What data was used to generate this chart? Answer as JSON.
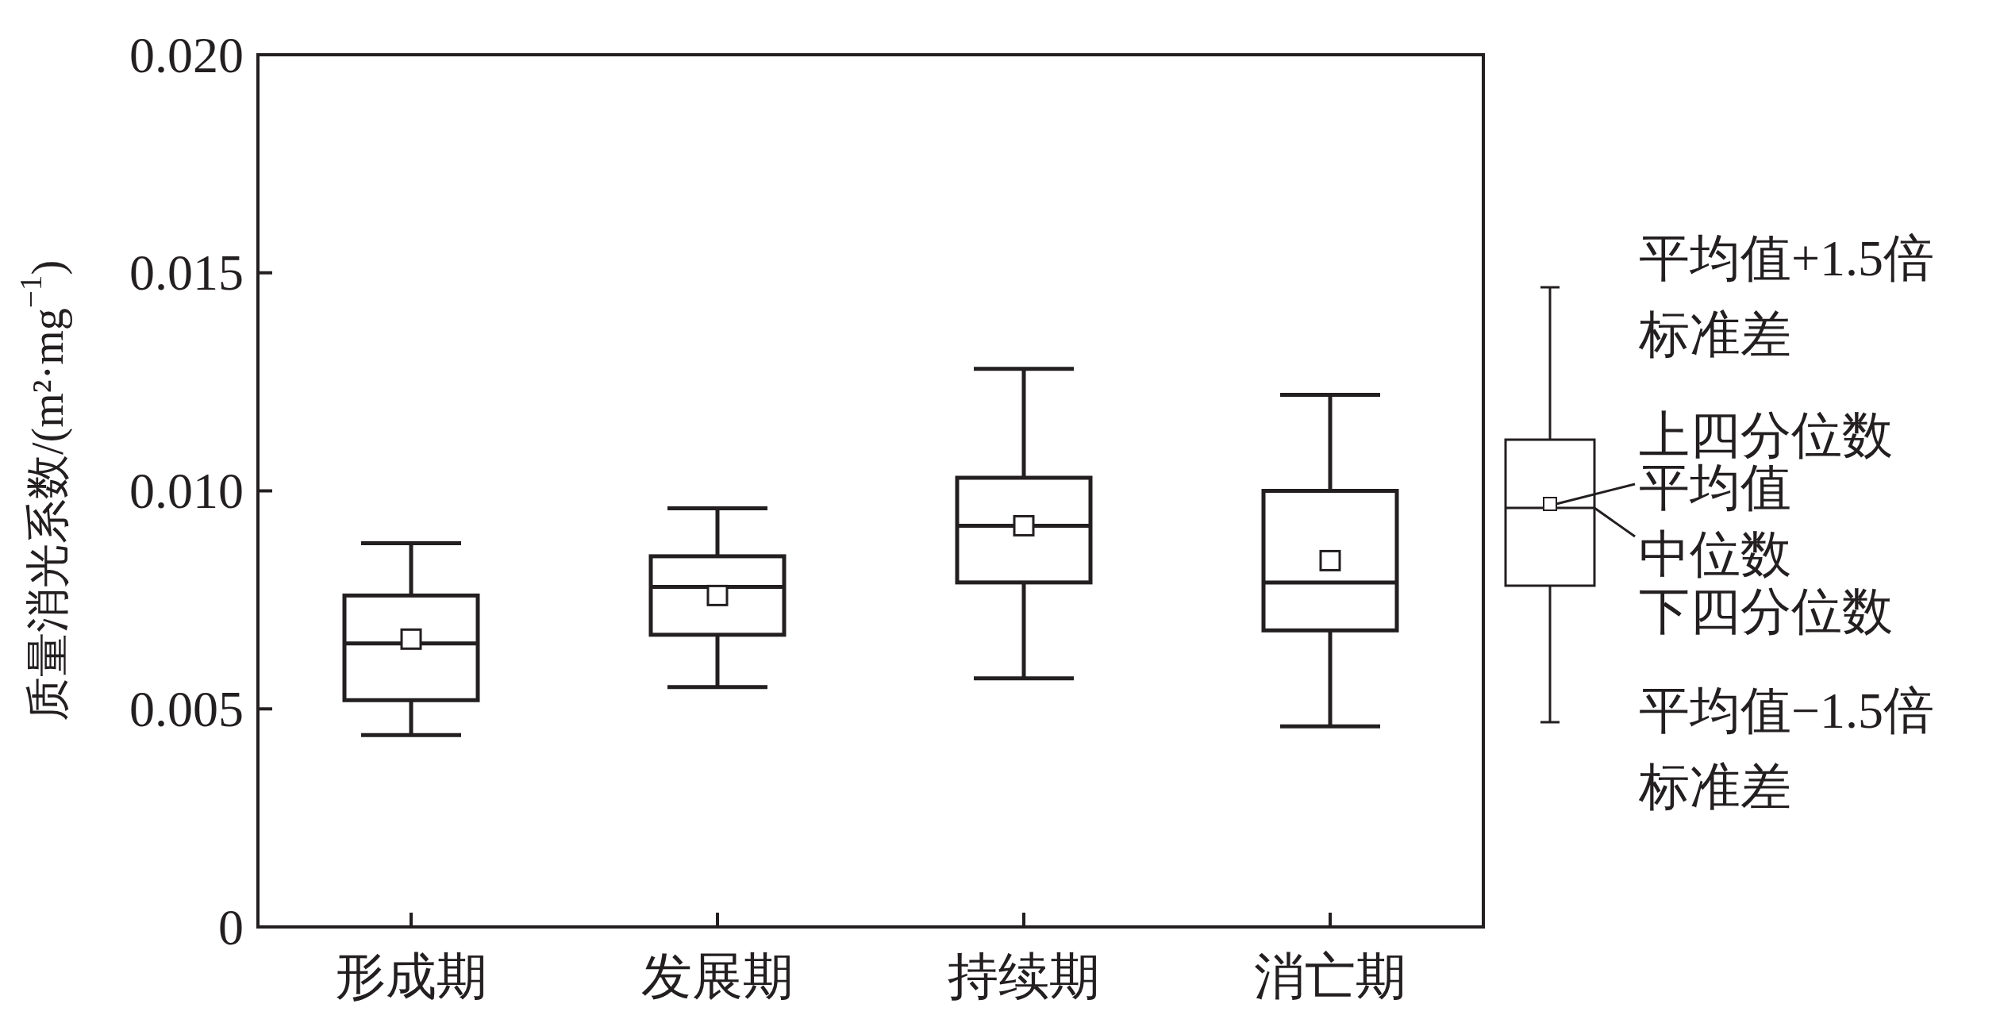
{
  "chart_data": {
    "type": "box",
    "ylabel": "质量消光系数/(m²·mg$^{−1}$)",
    "categories": [
      "形成期",
      "发展期",
      "持续期",
      "消亡期"
    ],
    "boxes": [
      {
        "low": 0.0044,
        "q1": 0.0052,
        "median": 0.0065,
        "q3": 0.0076,
        "high": 0.0088,
        "mean": 0.0066
      },
      {
        "low": 0.0055,
        "q1": 0.0067,
        "median": 0.0078,
        "q3": 0.0085,
        "high": 0.0096,
        "mean": 0.0076
      },
      {
        "low": 0.0057,
        "q1": 0.0079,
        "median": 0.0092,
        "q3": 0.0103,
        "high": 0.0128,
        "mean": 0.0092
      },
      {
        "low": 0.0046,
        "q1": 0.0068,
        "median": 0.0079,
        "q3": 0.01,
        "high": 0.0122,
        "mean": 0.0084
      }
    ],
    "ylim": [
      0,
      0.02
    ],
    "yticks": [
      {
        "value": 0,
        "label": "0"
      },
      {
        "value": 0.005,
        "label": "0.005"
      },
      {
        "value": 0.01,
        "label": "0.010"
      },
      {
        "value": 0.015,
        "label": "0.015"
      },
      {
        "value": 0.02,
        "label": "0.020"
      }
    ],
    "grid": false,
    "annotations": [
      "平均值+1.5倍",
      "标准差",
      "上四分位数",
      "平均值",
      "中位数",
      "下四分位数",
      "平均值−1.5倍",
      "标准差"
    ]
  }
}
